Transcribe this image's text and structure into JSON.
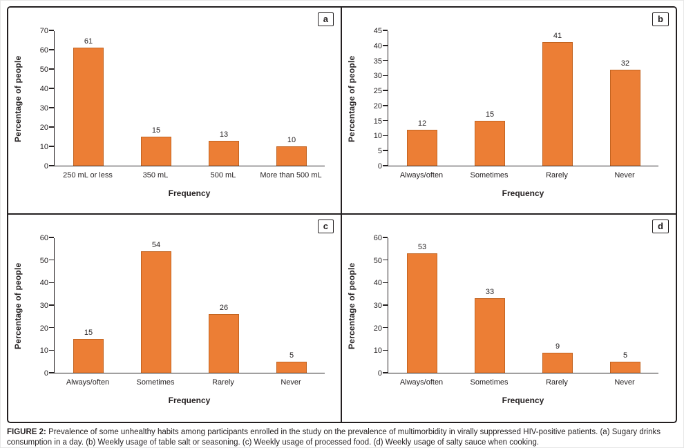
{
  "figure": {
    "caption_label": "FIGURE 2:",
    "caption_text": "Prevalence of some unhealthy habits among participants enrolled in the study on the prevalence of multimorbidity in virally suppressed HIV-positive patients. (a) Sugary drinks consumption in a day. (b) Weekly usage of table salt or seasoning. (c) Weekly usage of processed food. (d) Weekly usage of salty sauce when cooking."
  },
  "colors": {
    "bar_fill": "#EC7E35",
    "bar_border": "#C2631F",
    "axis": "#231F20"
  },
  "chart_data": [
    {
      "type": "bar",
      "panel": "a",
      "title": "",
      "categories": [
        "250 mL or less",
        "350 mL",
        "500 mL",
        "More than 500 mL"
      ],
      "values": [
        61,
        15,
        13,
        10
      ],
      "xlabel": "Frequency",
      "ylabel": "Percentage of people",
      "ylim": [
        0,
        70
      ],
      "yticks": [
        0,
        10,
        20,
        30,
        40,
        50,
        60,
        70
      ],
      "grid": false,
      "legend": "none"
    },
    {
      "type": "bar",
      "panel": "b",
      "title": "",
      "categories": [
        "Always/often",
        "Sometimes",
        "Rarely",
        "Never"
      ],
      "values": [
        12,
        15,
        41,
        32
      ],
      "xlabel": "Frequency",
      "ylabel": "Percentage of people",
      "ylim": [
        0,
        45
      ],
      "yticks": [
        0,
        5,
        10,
        15,
        20,
        25,
        30,
        35,
        40,
        45
      ],
      "grid": false,
      "legend": "none"
    },
    {
      "type": "bar",
      "panel": "c",
      "title": "",
      "categories": [
        "Always/often",
        "Sometimes",
        "Rarely",
        "Never"
      ],
      "values": [
        15,
        54,
        26,
        5
      ],
      "xlabel": "Frequency",
      "ylabel": "Percentage of people",
      "ylim": [
        0,
        60
      ],
      "yticks": [
        0,
        10,
        20,
        30,
        40,
        50,
        60
      ],
      "grid": false,
      "legend": "none"
    },
    {
      "type": "bar",
      "panel": "d",
      "title": "",
      "categories": [
        "Always/often",
        "Sometimes",
        "Rarely",
        "Never"
      ],
      "values": [
        53,
        33,
        9,
        5
      ],
      "xlabel": "Frequency",
      "ylabel": "Percentage of people",
      "ylim": [
        0,
        60
      ],
      "yticks": [
        0,
        10,
        20,
        30,
        40,
        50,
        60
      ],
      "grid": false,
      "legend": "none"
    }
  ]
}
